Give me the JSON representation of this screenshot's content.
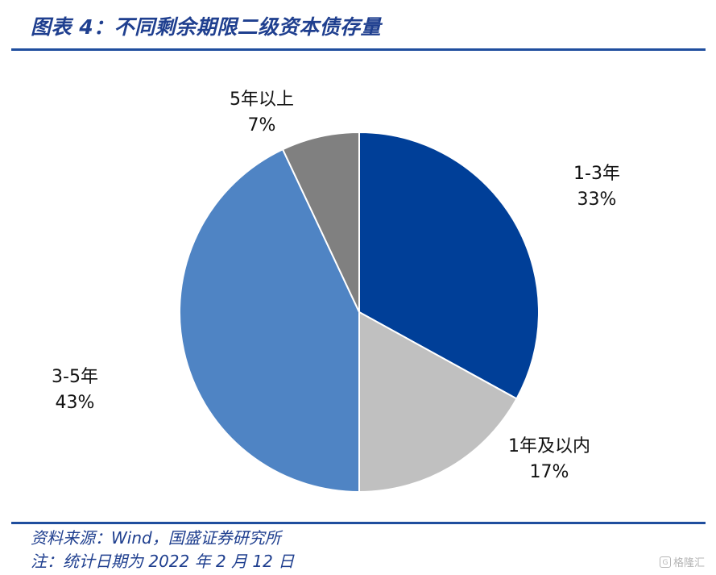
{
  "header": {
    "title": "图表 4：不同剩余期限二级资本债存量"
  },
  "chart_data": {
    "type": "pie",
    "slices": [
      {
        "label": "1-3年",
        "value": 33,
        "value_label": "33%",
        "color": "#003f98"
      },
      {
        "label": "1年及以内",
        "value": 17,
        "value_label": "17%",
        "color": "#c0c0c0"
      },
      {
        "label": "3-5年",
        "value": 43,
        "value_label": "43%",
        "color": "#4f84c4"
      },
      {
        "label": "5年以上",
        "value": 7,
        "value_label": "7%",
        "color": "#808080"
      }
    ]
  },
  "footer": {
    "source": "资料来源：Wind，国盛证券研究所",
    "note": "注：统计日期为 2022 年 2 月 12 日"
  },
  "watermark": {
    "text": "格隆汇"
  }
}
